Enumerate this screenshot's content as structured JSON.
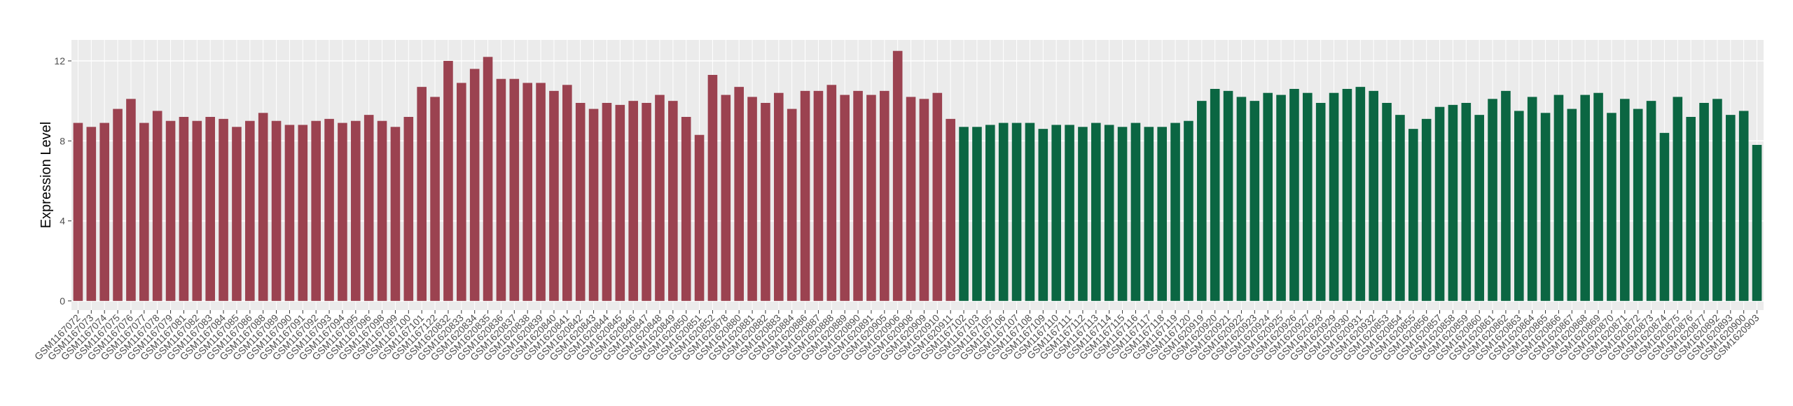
{
  "chart_data": {
    "type": "bar",
    "y_label": "Expression Level",
    "categories": [
      "GSM1167072",
      "GSM1167073",
      "GSM1167074",
      "GSM1167075",
      "GSM1167076",
      "GSM1167077",
      "GSM1167078",
      "GSM1167079",
      "GSM1167081",
      "GSM1167082",
      "GSM1167083",
      "GSM1167084",
      "GSM1167085",
      "GSM1167086",
      "GSM1167088",
      "GSM1167089",
      "GSM1167090",
      "GSM1167091",
      "GSM1167092",
      "GSM1167093",
      "GSM1167094",
      "GSM1167095",
      "GSM1167096",
      "GSM1167098",
      "GSM1167099",
      "GSM1167100",
      "GSM1167101",
      "GSM1167122",
      "GSM1620832",
      "GSM1620833",
      "GSM1620834",
      "GSM1620835",
      "GSM1620836",
      "GSM1620837",
      "GSM1620838",
      "GSM1620839",
      "GSM1620840",
      "GSM1620841",
      "GSM1620842",
      "GSM1620843",
      "GSM1620844",
      "GSM1620845",
      "GSM1620846",
      "GSM1620847",
      "GSM1620848",
      "GSM1620849",
      "GSM1620850",
      "GSM1620851",
      "GSM1620852",
      "GSM1620878",
      "GSM1620880",
      "GSM1620881",
      "GSM1620882",
      "GSM1620883",
      "GSM1620884",
      "GSM1620886",
      "GSM1620887",
      "GSM1620888",
      "GSM1620889",
      "GSM1620890",
      "GSM1620891",
      "GSM1620905",
      "GSM1620906",
      "GSM1620908",
      "GSM1620909",
      "GSM1620910",
      "GSM1620911",
      "GSM1167102",
      "GSM1167103",
      "GSM1167105",
      "GSM1167106",
      "GSM1167107",
      "GSM1167108",
      "GSM1167109",
      "GSM1167110",
      "GSM1167111",
      "GSM1167112",
      "GSM1167113",
      "GSM1167114",
      "GSM1167115",
      "GSM1167116",
      "GSM1167117",
      "GSM1167118",
      "GSM1167119",
      "GSM1167120",
      "GSM1620919",
      "GSM1620920",
      "GSM1620921",
      "GSM1620922",
      "GSM1620923",
      "GSM1620924",
      "GSM1620925",
      "GSM1620926",
      "GSM1620927",
      "GSM1620928",
      "GSM1620929",
      "GSM1620930",
      "GSM1620931",
      "GSM1620932",
      "GSM1620853",
      "GSM1620854",
      "GSM1620855",
      "GSM1620856",
      "GSM1620857",
      "GSM1620858",
      "GSM1620859",
      "GSM1620860",
      "GSM1620861",
      "GSM1620862",
      "GSM1620863",
      "GSM1620864",
      "GSM1620865",
      "GSM1620866",
      "GSM1620867",
      "GSM1620868",
      "GSM1620869",
      "GSM1620870",
      "GSM1620871",
      "GSM1620872",
      "GSM1620873",
      "GSM1620874",
      "GSM1620875",
      "GSM1620876",
      "GSM1620877",
      "GSM1620892",
      "GSM1620893",
      "GSM1620900",
      "GSM1620903"
    ],
    "series": [
      {
        "color": "#9b4250",
        "values": [
          8.9,
          8.7,
          8.9,
          9.6,
          10.1,
          8.9,
          9.5,
          9.0,
          9.2,
          9.0,
          9.2,
          9.1,
          8.7,
          9.0,
          9.4,
          9.0,
          8.8,
          8.8,
          9.0,
          9.1,
          8.9,
          9.0,
          9.3,
          9.0,
          8.7,
          9.2,
          10.7,
          10.2,
          12.0,
          10.9,
          11.6,
          12.2,
          11.1,
          11.1,
          10.9,
          10.9,
          10.5,
          10.8,
          9.9,
          9.6,
          9.9,
          9.8,
          10.0,
          9.9,
          10.3,
          10.0,
          9.2,
          8.3,
          11.3,
          10.3,
          10.7,
          10.2,
          9.9,
          10.4,
          9.6,
          10.5,
          10.5,
          10.8,
          10.3,
          10.5,
          10.3,
          10.5,
          12.5,
          10.2,
          10.1,
          10.4,
          9.1,
          null,
          null,
          null,
          null,
          null,
          null,
          null,
          null,
          null,
          null,
          null,
          null,
          null,
          null,
          null,
          null,
          null,
          null,
          null,
          null,
          null,
          null,
          null,
          null,
          null,
          null,
          null,
          null,
          null,
          null,
          null,
          null,
          null,
          null,
          null,
          null,
          null,
          null,
          null,
          null,
          null,
          null,
          null,
          null,
          null,
          null,
          null,
          null,
          null,
          null,
          null,
          null,
          null,
          null,
          null,
          null,
          null,
          null,
          null,
          null,
          null
        ]
      },
      {
        "color": "#0b6642",
        "values": [
          null,
          null,
          null,
          null,
          null,
          null,
          null,
          null,
          null,
          null,
          null,
          null,
          null,
          null,
          null,
          null,
          null,
          null,
          null,
          null,
          null,
          null,
          null,
          null,
          null,
          null,
          null,
          null,
          null,
          null,
          null,
          null,
          null,
          null,
          null,
          null,
          null,
          null,
          null,
          null,
          null,
          null,
          null,
          null,
          null,
          null,
          null,
          null,
          null,
          null,
          null,
          null,
          null,
          null,
          null,
          null,
          null,
          null,
          null,
          null,
          null,
          null,
          null,
          null,
          null,
          null,
          null,
          8.7,
          8.7,
          8.8,
          8.9,
          8.9,
          8.9,
          8.6,
          8.8,
          8.8,
          8.7,
          8.9,
          8.8,
          8.7,
          8.9,
          8.7,
          8.7,
          8.9,
          9.0,
          10.0,
          10.6,
          10.5,
          10.2,
          10.0,
          10.4,
          10.3,
          10.6,
          10.4,
          9.9,
          10.4,
          10.6,
          10.7,
          10.5,
          9.9,
          9.3,
          8.6,
          9.1,
          9.7,
          9.8,
          9.9,
          9.3,
          10.1,
          10.5,
          9.5,
          10.2,
          9.4,
          10.3,
          9.6,
          10.3,
          10.4,
          9.4,
          10.1,
          9.6,
          10.0,
          8.4,
          10.2,
          9.2,
          9.9,
          10.1,
          9.3,
          9.5,
          7.8
        ]
      }
    ],
    "ylim": [
      -0.46,
      13.05
    ],
    "yticks": [
      0,
      4,
      8,
      12
    ],
    "grid": true
  }
}
